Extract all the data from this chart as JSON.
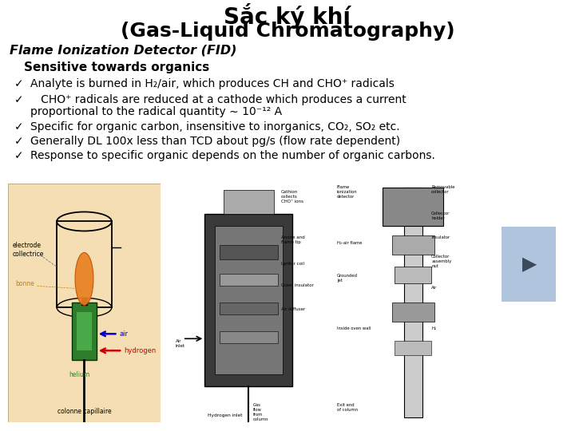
{
  "title_line1": "Sắc ký khí",
  "title_line2": "(Gas-Liquid Chromatography)",
  "subtitle": "Flame Ionization Detector (FID)",
  "subheading": "Sensitive towards organics",
  "bullet1": "Analyte is burned in H₂/air, which produces CH and CHO⁺ radicals",
  "bullet2a": "   CHO⁺ radicals are reduced at a cathode which produces a current",
  "bullet2b": "proportional to the radical quantity ∼ 10⁻¹² A",
  "bullet3": "Specific for organic carbon, insensitive to inorganics, CO₂, SO₂ etc.",
  "bullet4": "Generally DL 100x less than TCD about pg/s (flow rate dependent)",
  "bullet5": "Response to specific organic depends on the number of organic carbons.",
  "bg_color": "#ffffff",
  "text_color": "#000000",
  "check": "✓",
  "arrow_btn_color": "#b0c4de",
  "img1_bg": "#f5deb3",
  "green_color": "#2d7d2d",
  "flame_color": "#e88020",
  "label_color_helium": "#228B22",
  "label_color_bonne": "#b8860b",
  "label_color_hydrogen": "#cc0000",
  "label_color_air": "#0000cc"
}
